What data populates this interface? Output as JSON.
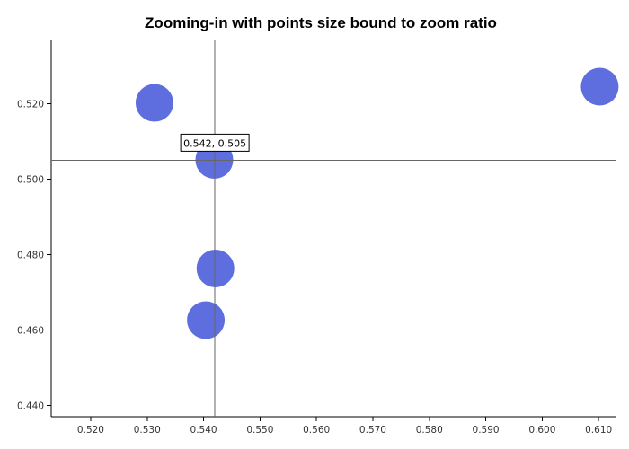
{
  "chart_data": {
    "type": "scatter",
    "title": "Zooming-in with points size bound to zoom ratio",
    "xlabel": "",
    "ylabel": "",
    "xlim": [
      0.513,
      0.613
    ],
    "ylim": [
      0.437,
      0.537
    ],
    "x_ticks": [
      "0.520",
      "0.530",
      "0.540",
      "0.550",
      "0.560",
      "0.570",
      "0.580",
      "0.590",
      "0.600",
      "0.610"
    ],
    "y_ticks": [
      "0.440",
      "0.460",
      "0.480",
      "0.500",
      "0.520"
    ],
    "grid": false,
    "point_color": "#5566dd",
    "points": [
      {
        "x": 0.5313,
        "y": 0.5202
      },
      {
        "x": 0.5419,
        "y": 0.5051
      },
      {
        "x": 0.5421,
        "y": 0.4763
      },
      {
        "x": 0.5404,
        "y": 0.4626
      },
      {
        "x": 0.6102,
        "y": 0.5245
      }
    ],
    "crosshair": {
      "x": 0.542,
      "y": 0.505
    },
    "tooltip": {
      "text": "0.542, 0.505"
    }
  }
}
